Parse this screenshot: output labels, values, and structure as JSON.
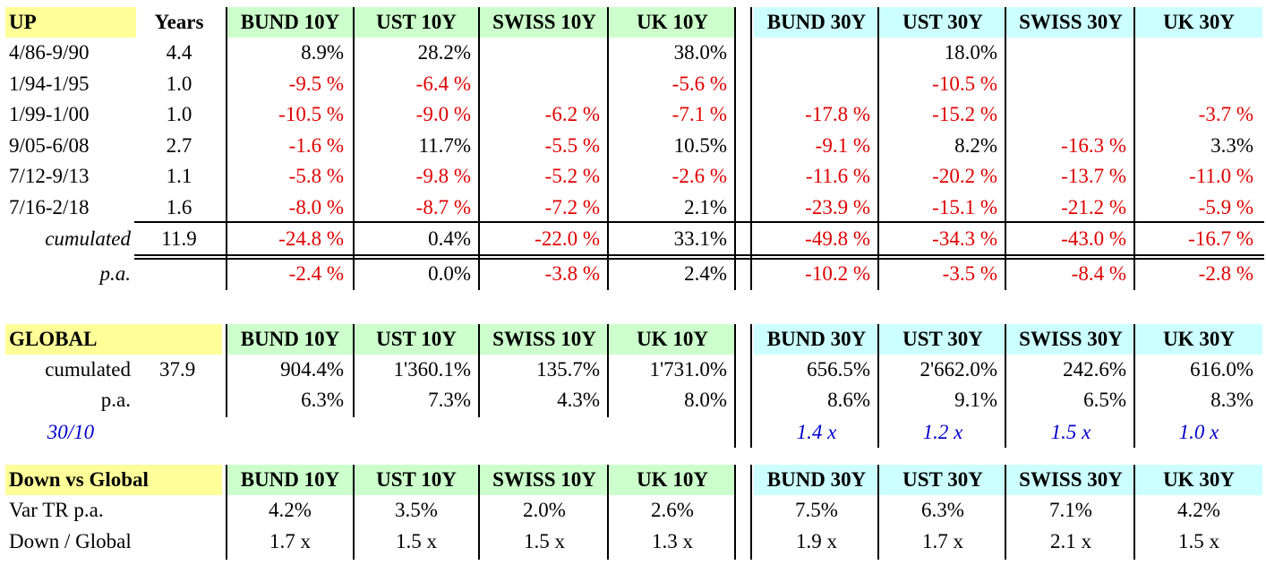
{
  "up": {
    "title": "UP",
    "years_header": "Years",
    "columns": [
      "BUND 10Y",
      "UST 10Y",
      "SWISS 10Y",
      "UK 10Y",
      "BUND 30Y",
      "UST 30Y",
      "SWISS 30Y",
      "UK 30Y"
    ],
    "rows": [
      {
        "period": "4/86-9/90",
        "years": "4.4",
        "values": [
          "8.9%",
          "28.2%",
          "",
          "38.0%",
          "",
          "18.0%",
          "",
          ""
        ]
      },
      {
        "period": "1/94-1/95",
        "years": "1.0",
        "values": [
          "-9.5 %",
          "-6.4 %",
          "",
          "-5.6 %",
          "",
          "-10.5 %",
          "",
          ""
        ]
      },
      {
        "period": "1/99-1/00",
        "years": "1.0",
        "values": [
          "-10.5 %",
          "-9.0 %",
          "-6.2 %",
          "-7.1 %",
          "-17.8 %",
          "-15.2 %",
          "",
          "-3.7 %"
        ]
      },
      {
        "period": "9/05-6/08",
        "years": "2.7",
        "values": [
          "-1.6 %",
          "11.7%",
          "-5.5 %",
          "10.5%",
          "-9.1 %",
          "8.2%",
          "-16.3 %",
          "3.3%"
        ]
      },
      {
        "period": "7/12-9/13",
        "years": "1.1",
        "values": [
          "-5.8 %",
          "-9.8 %",
          "-5.2 %",
          "-2.6 %",
          "-11.6 %",
          "-20.2 %",
          "-13.7 %",
          "-11.0 %"
        ]
      },
      {
        "period": "7/16-2/18",
        "years": "1.6",
        "values": [
          "-8.0 %",
          "-8.7 %",
          "-7.2 %",
          "2.1%",
          "-23.9 %",
          "-15.1 %",
          "-21.2 %",
          "-5.9 %"
        ]
      }
    ],
    "cumulated": {
      "label": "cumulated",
      "years": "11.9",
      "values": [
        "-24.8 %",
        "0.4%",
        "-22.0 %",
        "33.1%",
        "-49.8 %",
        "-34.3 %",
        "-43.0 %",
        "-16.7 %"
      ]
    },
    "pa": {
      "label": "p.a.",
      "values": [
        "-2.4 %",
        "0.0%",
        "-3.8 %",
        "2.4%",
        "-10.2 %",
        "-3.5 %",
        "-8.4 %",
        "-2.8 %"
      ]
    }
  },
  "global": {
    "title": "GLOBAL",
    "columns": [
      "BUND 10Y",
      "UST 10Y",
      "SWISS 10Y",
      "UK 10Y",
      "BUND 30Y",
      "UST 30Y",
      "SWISS 30Y",
      "UK 30Y"
    ],
    "cumulated": {
      "label": "cumulated",
      "years": "37.9",
      "values": [
        "904.4%",
        "1'360.1%",
        "135.7%",
        "1'731.0%",
        "656.5%",
        "2'662.0%",
        "242.6%",
        "616.0%"
      ]
    },
    "pa": {
      "label": "p.a.",
      "values": [
        "6.3%",
        "7.3%",
        "4.3%",
        "8.0%",
        "8.6%",
        "9.1%",
        "6.5%",
        "8.3%"
      ]
    },
    "ratio": {
      "label": "30/10",
      "values": [
        "1.4 x",
        "1.2 x",
        "1.5 x",
        "1.0 x"
      ]
    }
  },
  "down": {
    "title": "Down vs Global",
    "columns": [
      "BUND 10Y",
      "UST 10Y",
      "SWISS 10Y",
      "UK 10Y",
      "BUND 30Y",
      "UST 30Y",
      "SWISS 30Y",
      "UK 30Y"
    ],
    "var": {
      "label": "Var TR p.a.",
      "values": [
        "4.2%",
        "3.5%",
        "2.0%",
        "2.6%",
        "7.5%",
        "6.3%",
        "7.1%",
        "4.2%"
      ]
    },
    "ratio": {
      "label": "Down / Global",
      "values": [
        "1.7 x",
        "1.5 x",
        "1.5 x",
        "1.3 x",
        "1.9 x",
        "1.7 x",
        "2.1 x",
        "1.5 x"
      ]
    }
  },
  "colors": {
    "header_label": "#ffff99",
    "header_10y": "#ccffcc",
    "header_30y": "#ccffff",
    "negative": "#e00000",
    "ratio_text": "#0000cc"
  }
}
